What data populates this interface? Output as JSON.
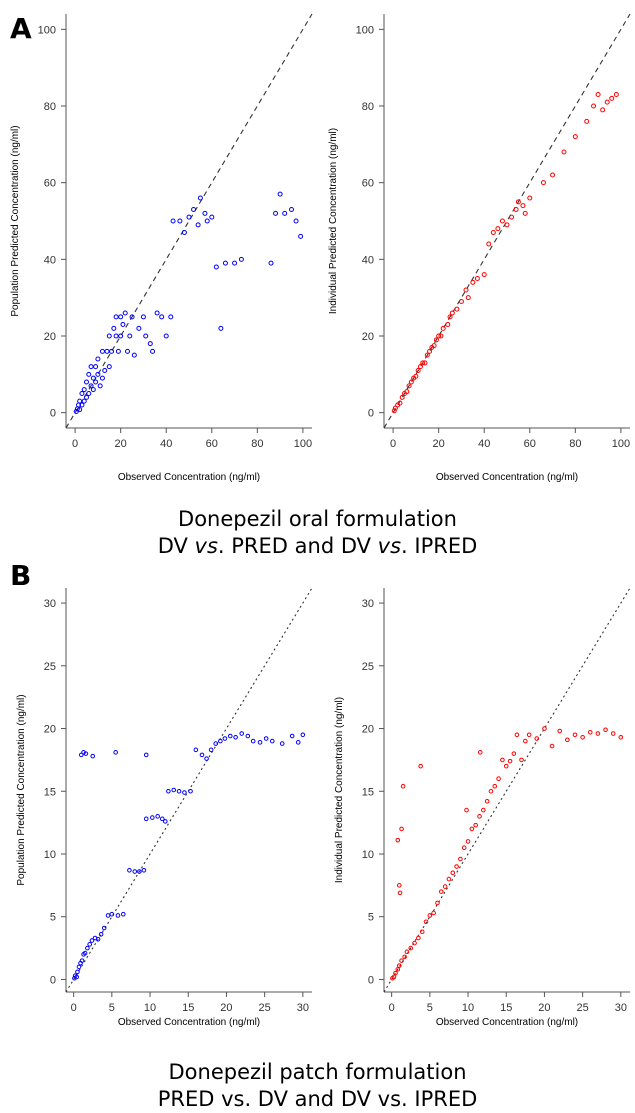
{
  "panels": {
    "a": "A",
    "b": "B"
  },
  "captions": {
    "a_line1": "Donepezil oral formulation",
    "a_line2_part1": "DV ",
    "a_line2_vs1": "vs",
    "a_line2_part2": ". PRED and DV ",
    "a_line2_vs2": "vs",
    "a_line2_part3": ". IPRED",
    "b_line1": "Donepezil patch formulation",
    "b_line2": "PRED vs. DV and DV vs. IPRED"
  },
  "colors": {
    "pred": "#0000ff",
    "ipred": "#ff0000",
    "identity": "#333333"
  },
  "chart_data": [
    {
      "id": "oral-pred",
      "type": "scatter",
      "xlabel": "Observed Concentration (ng/ml)",
      "ylabel": "Population Predicted Concentration (ng/ml)",
      "xticks": [
        0,
        20,
        40,
        60,
        80,
        100
      ],
      "yticks": [
        0,
        20,
        40,
        60,
        80,
        100
      ],
      "xlim": [
        -4,
        104
      ],
      "ylim": [
        -4,
        104
      ],
      "reference_line": "y = x (dashed)",
      "color": "pred",
      "points": [
        [
          0.5,
          0.3
        ],
        [
          1,
          1
        ],
        [
          1.5,
          2
        ],
        [
          2,
          0.8
        ],
        [
          2,
          3
        ],
        [
          3,
          2
        ],
        [
          3,
          5
        ],
        [
          4,
          3
        ],
        [
          4,
          6
        ],
        [
          5,
          4
        ],
        [
          5,
          8
        ],
        [
          6,
          5
        ],
        [
          6,
          10
        ],
        [
          7,
          7
        ],
        [
          7,
          12
        ],
        [
          8,
          6
        ],
        [
          8,
          9
        ],
        [
          9,
          8
        ],
        [
          9,
          12
        ],
        [
          10,
          10
        ],
        [
          10,
          14
        ],
        [
          11,
          7
        ],
        [
          12,
          9
        ],
        [
          12,
          16
        ],
        [
          13,
          11
        ],
        [
          14,
          16
        ],
        [
          15,
          12
        ],
        [
          15,
          20
        ],
        [
          16,
          16
        ],
        [
          17,
          22
        ],
        [
          18,
          20
        ],
        [
          18,
          25
        ],
        [
          19,
          16
        ],
        [
          20,
          20
        ],
        [
          20,
          25
        ],
        [
          21,
          23
        ],
        [
          22,
          26
        ],
        [
          23,
          16
        ],
        [
          24,
          20
        ],
        [
          25,
          25
        ],
        [
          26,
          15
        ],
        [
          28,
          22
        ],
        [
          30,
          25
        ],
        [
          31,
          20
        ],
        [
          33,
          18
        ],
        [
          34,
          16
        ],
        [
          36,
          26
        ],
        [
          38,
          25
        ],
        [
          40,
          20
        ],
        [
          42,
          25
        ],
        [
          43,
          50
        ],
        [
          46,
          50
        ],
        [
          48,
          47
        ],
        [
          50,
          51
        ],
        [
          52,
          53
        ],
        [
          54,
          49
        ],
        [
          55,
          56
        ],
        [
          57,
          52
        ],
        [
          58,
          50
        ],
        [
          60,
          51
        ],
        [
          62,
          38
        ],
        [
          64,
          22
        ],
        [
          66,
          39
        ],
        [
          70,
          39
        ],
        [
          73,
          40
        ],
        [
          86,
          39
        ],
        [
          88,
          52
        ],
        [
          90,
          57
        ],
        [
          92,
          52
        ],
        [
          95,
          53
        ],
        [
          97,
          50
        ],
        [
          99,
          46
        ]
      ]
    },
    {
      "id": "oral-ipred",
      "type": "scatter",
      "xlabel": "Observed Concentration (ng/ml)",
      "ylabel": "Individual Predicted Concentration (ng/ml)",
      "xticks": [
        0,
        20,
        40,
        60,
        80,
        100
      ],
      "yticks": [
        0,
        20,
        40,
        60,
        80,
        100
      ],
      "xlim": [
        -4,
        104
      ],
      "ylim": [
        -4,
        104
      ],
      "reference_line": "y = x (dashed)",
      "color": "ipred",
      "points": [
        [
          0.5,
          0.5
        ],
        [
          1,
          1.2
        ],
        [
          2,
          2
        ],
        [
          3,
          2.5
        ],
        [
          4,
          4
        ],
        [
          5,
          5
        ],
        [
          6,
          5.5
        ],
        [
          7,
          7
        ],
        [
          8,
          8
        ],
        [
          9,
          9
        ],
        [
          10,
          9.5
        ],
        [
          11,
          11
        ],
        [
          12,
          12
        ],
        [
          13,
          13
        ],
        [
          14,
          13
        ],
        [
          15,
          15
        ],
        [
          16,
          16
        ],
        [
          17,
          17
        ],
        [
          18,
          17.5
        ],
        [
          19,
          19
        ],
        [
          20,
          20
        ],
        [
          21,
          20
        ],
        [
          22,
          22
        ],
        [
          24,
          23
        ],
        [
          25,
          25
        ],
        [
          26,
          26
        ],
        [
          28,
          27
        ],
        [
          30,
          29
        ],
        [
          32,
          32
        ],
        [
          33,
          30
        ],
        [
          35,
          34
        ],
        [
          37,
          35
        ],
        [
          40,
          36
        ],
        [
          42,
          44
        ],
        [
          44,
          47
        ],
        [
          46,
          48
        ],
        [
          48,
          50
        ],
        [
          50,
          49
        ],
        [
          52,
          51
        ],
        [
          54,
          53
        ],
        [
          55,
          55
        ],
        [
          57,
          54
        ],
        [
          58,
          52
        ],
        [
          60,
          56
        ],
        [
          66,
          60
        ],
        [
          70,
          62
        ],
        [
          75,
          68
        ],
        [
          80,
          72
        ],
        [
          85,
          76
        ],
        [
          88,
          80
        ],
        [
          90,
          83
        ],
        [
          92,
          79
        ],
        [
          94,
          81
        ],
        [
          96,
          82
        ],
        [
          98,
          83
        ]
      ]
    },
    {
      "id": "patch-pred",
      "type": "scatter",
      "xlabel": "Observed Concentration (ng/ml)",
      "ylabel": "Population Predicted Concentration (ng/ml)",
      "xticks": [
        0,
        5,
        10,
        15,
        20,
        25,
        30
      ],
      "yticks": [
        0,
        5,
        10,
        15,
        20,
        25,
        30
      ],
      "xlim": [
        -1,
        31.2
      ],
      "ylim": [
        -1,
        31.2
      ],
      "reference_line": "y = x (dotted)",
      "color": "pred",
      "points": [
        [
          0.1,
          0.1
        ],
        [
          0.2,
          0.3
        ],
        [
          0.4,
          0.2
        ],
        [
          0.5,
          0.6
        ],
        [
          0.7,
          1.0
        ],
        [
          0.9,
          1.3
        ],
        [
          1.1,
          1.5
        ],
        [
          1.3,
          2.0
        ],
        [
          1.5,
          2.1
        ],
        [
          1.8,
          2.5
        ],
        [
          2.1,
          2.8
        ],
        [
          2.4,
          3.1
        ],
        [
          2.8,
          3.3
        ],
        [
          3.2,
          3.2
        ],
        [
          3.6,
          3.6
        ],
        [
          4.0,
          4.1
        ],
        [
          4.5,
          5.1
        ],
        [
          5.0,
          5.2
        ],
        [
          5.8,
          5.1
        ],
        [
          6.5,
          5.2
        ],
        [
          7.3,
          8.7
        ],
        [
          8.0,
          8.6
        ],
        [
          8.6,
          8.6
        ],
        [
          9.2,
          8.7
        ],
        [
          9.5,
          12.8
        ],
        [
          10.3,
          12.9
        ],
        [
          11.0,
          13.0
        ],
        [
          11.6,
          12.8
        ],
        [
          12.0,
          12.6
        ],
        [
          12.4,
          15.0
        ],
        [
          13.1,
          15.1
        ],
        [
          13.8,
          15.0
        ],
        [
          14.5,
          14.9
        ],
        [
          15.3,
          15.0
        ],
        [
          16.0,
          18.3
        ],
        [
          16.8,
          17.9
        ],
        [
          17.4,
          17.6
        ],
        [
          18.0,
          18.3
        ],
        [
          18.6,
          18.8
        ],
        [
          19.2,
          19.0
        ],
        [
          19.8,
          19.2
        ],
        [
          20.5,
          19.4
        ],
        [
          21.2,
          19.3
        ],
        [
          22.0,
          19.6
        ],
        [
          22.8,
          19.4
        ],
        [
          23.5,
          19.0
        ],
        [
          24.4,
          18.9
        ],
        [
          25.2,
          19.2
        ],
        [
          26.0,
          19.0
        ],
        [
          27.3,
          18.8
        ],
        [
          28.6,
          19.4
        ],
        [
          29.4,
          18.9
        ],
        [
          30.0,
          19.5
        ],
        [
          1.0,
          17.9
        ],
        [
          1.3,
          18.1
        ],
        [
          1.6,
          18.0
        ],
        [
          2.5,
          17.8
        ],
        [
          5.5,
          18.1
        ],
        [
          9.5,
          17.9
        ]
      ]
    },
    {
      "id": "patch-ipred",
      "type": "scatter",
      "xlabel": "Observed Concentration (ng/ml)",
      "ylabel": "Individual Predicted Concentration (ng/ml)",
      "xticks": [
        0,
        5,
        10,
        15,
        20,
        25,
        30
      ],
      "yticks": [
        0,
        5,
        10,
        15,
        20,
        25,
        30
      ],
      "xlim": [
        -1,
        31.2
      ],
      "ylim": [
        -1,
        31.2
      ],
      "reference_line": "y = x (dotted)",
      "color": "ipred",
      "points": [
        [
          0.1,
          0.1
        ],
        [
          0.3,
          0.2
        ],
        [
          0.5,
          0.5
        ],
        [
          0.8,
          0.8
        ],
        [
          1.0,
          1.1
        ],
        [
          1.3,
          1.5
        ],
        [
          1.7,
          1.8
        ],
        [
          2.0,
          2.2
        ],
        [
          2.5,
          2.5
        ],
        [
          3.0,
          2.9
        ],
        [
          3.5,
          3.3
        ],
        [
          4.0,
          3.8
        ],
        [
          4.5,
          4.6
        ],
        [
          5.0,
          5.1
        ],
        [
          5.5,
          5.3
        ],
        [
          6.0,
          6.1
        ],
        [
          6.5,
          7.0
        ],
        [
          7.0,
          7.4
        ],
        [
          7.5,
          8.0
        ],
        [
          8.0,
          8.5
        ],
        [
          8.5,
          9.0
        ],
        [
          9.0,
          9.6
        ],
        [
          9.5,
          10.5
        ],
        [
          10.0,
          11.0
        ],
        [
          10.5,
          12.0
        ],
        [
          11.0,
          12.3
        ],
        [
          11.5,
          13.0
        ],
        [
          12.0,
          13.5
        ],
        [
          12.5,
          14.2
        ],
        [
          13.0,
          15.0
        ],
        [
          13.5,
          15.4
        ],
        [
          14.0,
          16.0
        ],
        [
          14.5,
          17.5
        ],
        [
          15.0,
          17.0
        ],
        [
          15.5,
          17.4
        ],
        [
          16.0,
          18.0
        ],
        [
          17.0,
          17.5
        ],
        [
          17.5,
          19.0
        ],
        [
          18.0,
          19.5
        ],
        [
          19.0,
          19.2
        ],
        [
          20.0,
          20.0
        ],
        [
          21.0,
          18.6
        ],
        [
          22.0,
          19.8
        ],
        [
          23.0,
          19.1
        ],
        [
          24.0,
          19.5
        ],
        [
          25.0,
          19.3
        ],
        [
          26.0,
          19.7
        ],
        [
          27.0,
          19.6
        ],
        [
          28.0,
          19.9
        ],
        [
          29.0,
          19.6
        ],
        [
          30.0,
          19.3
        ],
        [
          0.8,
          11.1
        ],
        [
          1.0,
          7.5
        ],
        [
          1.1,
          6.9
        ],
        [
          1.3,
          12.0
        ],
        [
          1.5,
          15.4
        ],
        [
          3.8,
          17.0
        ],
        [
          9.8,
          13.5
        ],
        [
          11.6,
          18.1
        ],
        [
          16.4,
          19.5
        ]
      ]
    }
  ]
}
